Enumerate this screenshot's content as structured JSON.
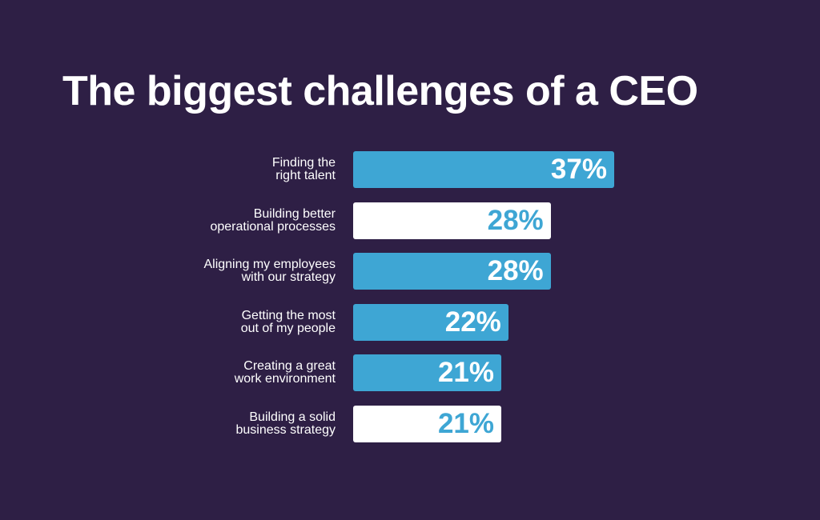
{
  "chart_data": {
    "type": "bar",
    "orientation": "horizontal",
    "title": "The biggest challenges of a CEO",
    "categories": [
      "Finding the\nright talent",
      "Building better\noperational processes",
      "Aligning my employees\nwith our strategy",
      "Getting the most\nout of my people",
      "Creating a great\nwork environment",
      "Building a solid\nbusiness strategy"
    ],
    "values": [
      37,
      28,
      28,
      22,
      21,
      21
    ],
    "value_labels": [
      "37%",
      "28%",
      "28%",
      "22%",
      "21%",
      "21%"
    ],
    "colors": [
      "#3ea6d4",
      "#ffffff",
      "#3ea6d4",
      "#3ea6d4",
      "#3ea6d4",
      "#ffffff"
    ],
    "label_colors": [
      "#ffffff",
      "#3ea6d4",
      "#ffffff",
      "#ffffff",
      "#ffffff",
      "#3ea6d4"
    ]
  }
}
